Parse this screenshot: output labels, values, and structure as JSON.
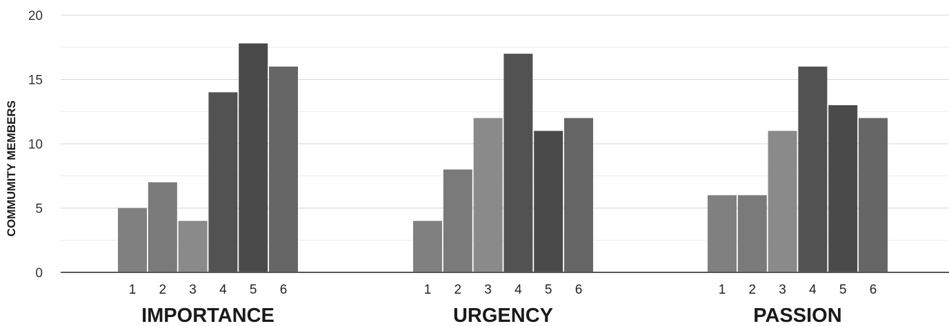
{
  "chart_data": {
    "type": "bar",
    "title": "",
    "ylabel": "COMMUMITY  MEMBERS",
    "ylim": [
      0,
      20
    ],
    "yticks": [
      0,
      5,
      10,
      15,
      20
    ],
    "grid": true,
    "legend": "none",
    "categories": [
      "1",
      "2",
      "3",
      "4",
      "5",
      "6"
    ],
    "groups": [
      {
        "label": "IMPORTANCE",
        "values": [
          5,
          7,
          4,
          14,
          17.8,
          16
        ]
      },
      {
        "label": "URGENCY",
        "values": [
          4,
          8,
          12,
          17,
          11,
          12
        ]
      },
      {
        "label": "PASSION",
        "values": [
          6,
          6,
          11,
          16,
          13,
          12
        ]
      }
    ],
    "bar_colors": [
      "#808080",
      "#7a7a7a",
      "#8a8a8a",
      "#525252",
      "#4a4a4a",
      "#666666"
    ]
  }
}
